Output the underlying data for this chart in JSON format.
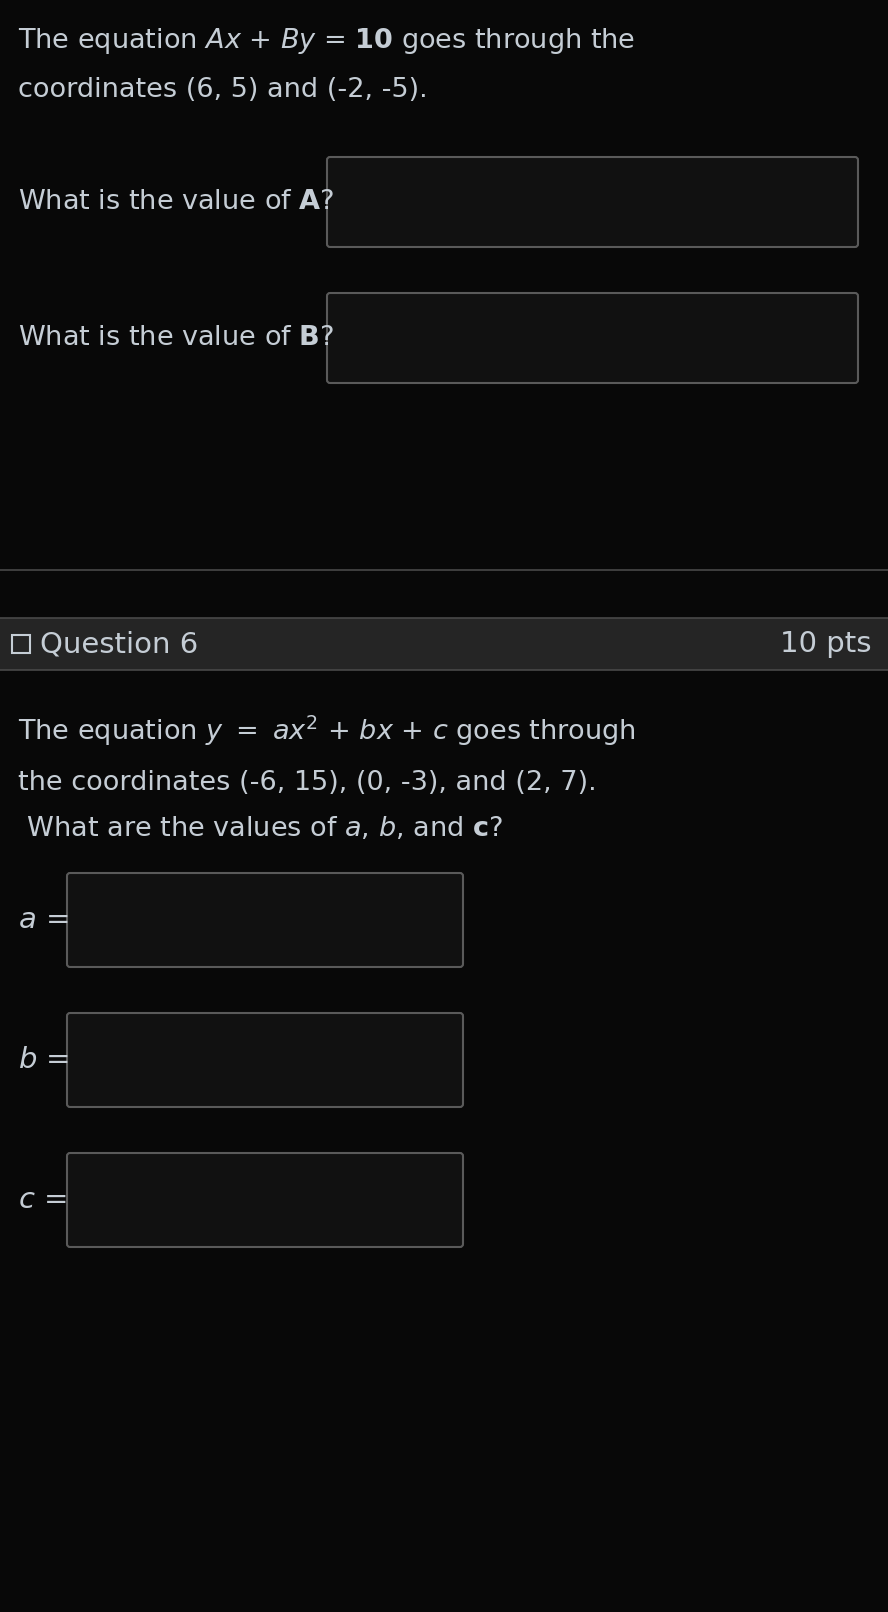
{
  "bg_color": "#080808",
  "header_bar_color": "#252525",
  "divider_color": "#484848",
  "text_color": "#c5cdd5",
  "box_edge_color": "#5a5a5a",
  "box_fill_color": "#111111",
  "fig_w": 8.88,
  "fig_h": 16.12,
  "dpi": 100,
  "section1": {
    "line1": "The equation $\\mathbf{\\mathit{Ax}}$ + $\\mathbf{\\mathit{By}}$ = $\\mathbf{10}$ goes through the",
    "line2": "coordinates (6, 5) and (-2, -5).",
    "q1_text": "What is the value of $\\mathbf{A}$?",
    "q2_text": "What is the value of $\\mathbf{B}$?"
  },
  "section2": {
    "header_left": "Question 6",
    "header_right": "10 pts",
    "line1": "The equation $\\mathit{y}$ $=$ $\\mathbf{\\mathit{ax^2}}$ $+$ $\\mathbf{\\mathit{bx}}$ $+$ $\\mathbf{\\mathit{c}}$ goes through",
    "line2": "the coordinates (-6, 15), (0, -3), and (2, 7).",
    "line3": " What are the values of $\\mathbf{\\mathit{a}}$, $\\mathbf{\\mathit{b}}$, and $\\mathbf{c}$?",
    "label_a": "$\\mathit{a}$ =",
    "label_b": "$\\mathit{b}$ =",
    "label_c": "$\\mathit{c}$ ="
  }
}
